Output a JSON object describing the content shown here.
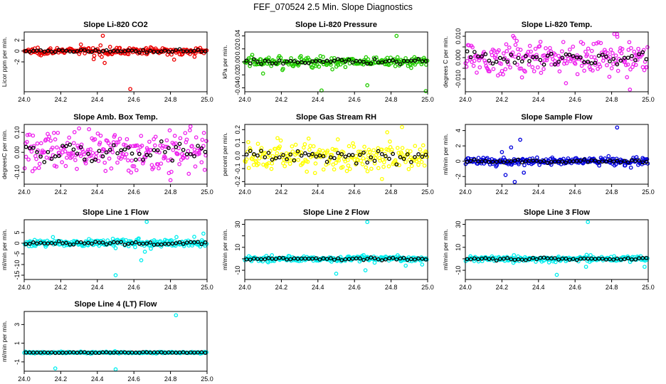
{
  "page_title": "FEF_070524  2.5 Min. Slope Diagnostics",
  "chart_data": [
    {
      "type": "scatter",
      "title": "Slope Li-820 CO2",
      "ylabel": "Licor ppm per min.",
      "xlim": [
        24.0,
        25.0
      ],
      "ylim": [
        -7.5,
        3.5
      ],
      "xticks": [
        "24.0",
        "24.2",
        "24.4",
        "24.6",
        "24.8",
        "25.0"
      ],
      "yticks": [
        -2,
        0,
        2
      ],
      "ytick_labels": [
        "-2",
        "0",
        "2"
      ],
      "color": "#ee0000",
      "spread": 0.45,
      "outliers": [
        [
          24.43,
          2.8
        ],
        [
          24.38,
          -1.5
        ],
        [
          24.44,
          -2.2
        ],
        [
          24.58,
          -7
        ],
        [
          24.82,
          -1.6
        ],
        [
          24.31,
          1.2
        ]
      ]
    },
    {
      "type": "scatter",
      "title": "Slope Li-820 Pressure",
      "ylabel": "kPa per min.",
      "xlim": [
        24.0,
        25.0
      ],
      "ylim": [
        -0.046,
        0.046
      ],
      "xticks": [
        "24.0",
        "24.2",
        "24.4",
        "24.6",
        "24.8",
        "25.0"
      ],
      "yticks": [
        -0.04,
        -0.02,
        0.0,
        0.02,
        0.04
      ],
      "ytick_labels": [
        "-0.04",
        "-0.02",
        "0.00",
        "0.02",
        "0.04"
      ],
      "color": "#22cc00",
      "spread": 0.006,
      "outliers": [
        [
          24.83,
          0.04
        ],
        [
          24.42,
          -0.044
        ],
        [
          24.67,
          -0.036
        ],
        [
          24.99,
          -0.045
        ],
        [
          24.1,
          -0.018
        ]
      ]
    },
    {
      "type": "scatter",
      "title": "Slope Li-820 Temp.",
      "ylabel": "degrees C per min.",
      "xlim": [
        24.0,
        25.0
      ],
      "ylim": [
        -0.016,
        0.012
      ],
      "xticks": [
        "24.0",
        "24.2",
        "24.4",
        "24.6",
        "24.8",
        "25.0"
      ],
      "yticks": [
        -0.01,
        -0.005,
        0.0,
        0.005,
        0.01
      ],
      "ytick_labels": [
        "-0.010",
        "",
        "0.000",
        "",
        "0.010"
      ],
      "color": "#ee22ee",
      "spread": 0.006,
      "outliers": [
        [
          24.9,
          -0.015
        ],
        [
          24.83,
          0.011
        ]
      ]
    },
    {
      "type": "scatter",
      "title": "Slope Amb. Box Temp.",
      "ylabel": "degreesC per min.",
      "xlim": [
        24.0,
        25.0
      ],
      "ylim": [
        -0.16,
        0.14
      ],
      "xticks": [
        "24.0",
        "24.2",
        "24.4",
        "24.6",
        "24.8",
        "25.0"
      ],
      "yticks": [
        -0.1,
        0.0,
        0.1
      ],
      "ytick_labels": [
        "-0.10",
        "0.00",
        "0.10"
      ],
      "color": "#ee22ee",
      "spread": 0.07,
      "outliers": [
        [
          24.8,
          -0.14
        ],
        [
          24.3,
          0.12
        ]
      ]
    },
    {
      "type": "scatter",
      "title": "Slope Gas Stream RH",
      "ylabel": "percent per min.",
      "xlim": [
        24.0,
        25.0
      ],
      "ylim": [
        -0.22,
        0.24
      ],
      "xticks": [
        "24.0",
        "24.2",
        "24.4",
        "24.6",
        "24.8",
        "25.0"
      ],
      "yticks": [
        -0.2,
        -0.1,
        0.0,
        0.1,
        0.2
      ],
      "ytick_labels": [
        "-0.2",
        "-0.1",
        "0.0",
        "0.1",
        "0.2"
      ],
      "color": "#ffff00",
      "spread": 0.08,
      "outliers": [
        [
          24.75,
          -0.18
        ],
        [
          24.86,
          0.22
        ]
      ]
    },
    {
      "type": "scatter",
      "title": "Slope Sample Flow",
      "ylabel": "ml/min per min.",
      "xlim": [
        24.0,
        25.0
      ],
      "ylim": [
        -3.0,
        4.8
      ],
      "xticks": [
        "24.0",
        "24.2",
        "24.4",
        "24.6",
        "24.8",
        "25.0"
      ],
      "yticks": [
        -2,
        0,
        2,
        4
      ],
      "ytick_labels": [
        "-2",
        "0",
        "2",
        "4"
      ],
      "color": "#0000dd",
      "spread": 0.35,
      "outliers": [
        [
          24.83,
          4.4
        ],
        [
          24.3,
          2.8
        ],
        [
          24.27,
          -2.7
        ],
        [
          24.25,
          1.8
        ],
        [
          24.22,
          -1.8
        ],
        [
          24.2,
          1.2
        ],
        [
          24.32,
          -1.5
        ]
      ]
    },
    {
      "type": "scatter",
      "title": "Slope Line 1 Flow",
      "ylabel": "ml/min per min.",
      "xlim": [
        24.0,
        25.0
      ],
      "ylim": [
        -17,
        11
      ],
      "xticks": [
        "24.0",
        "24.2",
        "24.4",
        "24.6",
        "24.8",
        "25.0"
      ],
      "yticks": [
        -15,
        -10,
        -5,
        0,
        5
      ],
      "ytick_labels": [
        "-15",
        "-10",
        "-5",
        "0",
        "5"
      ],
      "color": "#00eeee",
      "spread": 1.2,
      "outliers": [
        [
          24.67,
          10
        ],
        [
          24.5,
          -15
        ],
        [
          24.64,
          -8
        ],
        [
          24.66,
          -4
        ],
        [
          24.98,
          4.5
        ],
        [
          24.93,
          3
        ]
      ]
    },
    {
      "type": "scatter",
      "title": "Slope Line 2 Flow",
      "ylabel": "ml/min per min.",
      "xlim": [
        24.0,
        25.0
      ],
      "ylim": [
        -18,
        34
      ],
      "xticks": [
        "24.0",
        "24.2",
        "24.4",
        "24.6",
        "24.8",
        "25.0"
      ],
      "yticks": [
        -10,
        0,
        10,
        20,
        30
      ],
      "ytick_labels": [
        "-10",
        "",
        "10",
        "",
        "30"
      ],
      "color": "#00eeee",
      "spread": 1.6,
      "outliers": [
        [
          24.67,
          32
        ],
        [
          24.5,
          -13
        ],
        [
          24.66,
          -10
        ],
        [
          24.97,
          -5
        ],
        [
          24.88,
          -6
        ]
      ]
    },
    {
      "type": "scatter",
      "title": "Slope Line 3 Flow",
      "ylabel": "ml/min per min.",
      "xlim": [
        24.0,
        25.0
      ],
      "ylim": [
        -18,
        34
      ],
      "xticks": [
        "24.0",
        "24.2",
        "24.4",
        "24.6",
        "24.8",
        "25.0"
      ],
      "yticks": [
        -10,
        0,
        10,
        20,
        30
      ],
      "ytick_labels": [
        "-10",
        "",
        "10",
        "",
        "30"
      ],
      "color": "#00eeee",
      "spread": 1.6,
      "outliers": [
        [
          24.67,
          32
        ],
        [
          24.5,
          -14
        ],
        [
          24.66,
          -7
        ],
        [
          24.98,
          -7
        ]
      ]
    },
    {
      "type": "scatter",
      "title": "Slope Line 4 (LT) Flow",
      "ylabel": "ml/min per min.",
      "xlim": [
        24.0,
        25.0
      ],
      "ylim": [
        -2.0,
        4.4
      ],
      "xticks": [
        "24.0",
        "24.2",
        "24.4",
        "24.6",
        "24.8",
        "25.0"
      ],
      "yticks": [
        -1,
        1,
        3
      ],
      "ytick_labels": [
        "-1",
        "1",
        "3"
      ],
      "color": "#00eeee",
      "spread": 0.06,
      "outliers": [
        [
          24.83,
          4.0
        ],
        [
          24.17,
          -1.7
        ],
        [
          24.5,
          -1.8
        ]
      ]
    }
  ]
}
